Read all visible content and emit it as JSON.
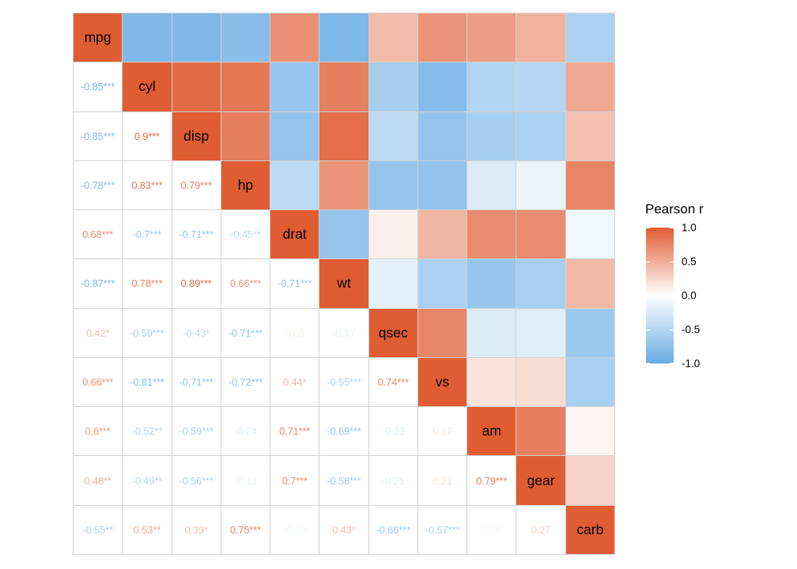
{
  "chart_data": {
    "type": "heatmap",
    "title": "",
    "description": "Pairwise Pearson correlation matrix (mtcars variables): lower triangle shows coefficients with significance stars, diagonal shows variable names, upper triangle shows color tiles",
    "variables": [
      "mpg",
      "cyl",
      "disp",
      "hp",
      "drat",
      "wt",
      "qsec",
      "vs",
      "am",
      "gear",
      "carb"
    ],
    "rows": [
      {
        "name": "mpg",
        "cells": []
      },
      {
        "name": "cyl",
        "cells": [
          {
            "label": "-0.85***",
            "r": -0.85
          }
        ]
      },
      {
        "name": "disp",
        "cells": [
          {
            "label": "-0.85***",
            "r": -0.85
          },
          {
            "label": "0.9***",
            "r": 0.9
          }
        ]
      },
      {
        "name": "hp",
        "cells": [
          {
            "label": "-0.78***",
            "r": -0.78
          },
          {
            "label": "0.83***",
            "r": 0.83
          },
          {
            "label": "0.79***",
            "r": 0.79
          }
        ]
      },
      {
        "name": "drat",
        "cells": [
          {
            "label": "0.68***",
            "r": 0.68
          },
          {
            "label": "-0.7***",
            "r": -0.7
          },
          {
            "label": "-0.71***",
            "r": -0.71
          },
          {
            "label": "-0.45**",
            "r": -0.45
          }
        ]
      },
      {
        "name": "wt",
        "cells": [
          {
            "label": "-0.87***",
            "r": -0.87
          },
          {
            "label": "0.78***",
            "r": 0.78
          },
          {
            "label": "0.89***",
            "r": 0.89
          },
          {
            "label": "0.66***",
            "r": 0.66
          },
          {
            "label": "-0.71***",
            "r": -0.71
          }
        ]
      },
      {
        "name": "qsec",
        "cells": [
          {
            "label": "0.42*",
            "r": 0.42
          },
          {
            "label": "-0.59***",
            "r": -0.59
          },
          {
            "label": "-0.43*",
            "r": -0.43
          },
          {
            "label": "-0.71***",
            "r": -0.71
          },
          {
            "label": "0.09",
            "r": 0.09
          },
          {
            "label": "-0.17",
            "r": -0.17
          }
        ]
      },
      {
        "name": "vs",
        "cells": [
          {
            "label": "0.66***",
            "r": 0.66
          },
          {
            "label": "-0.81***",
            "r": -0.81
          },
          {
            "label": "-0.71***",
            "r": -0.71
          },
          {
            "label": "-0.72***",
            "r": -0.72
          },
          {
            "label": "0.44*",
            "r": 0.44
          },
          {
            "label": "-0.55***",
            "r": -0.55
          },
          {
            "label": "0.74***",
            "r": 0.74
          }
        ]
      },
      {
        "name": "am",
        "cells": [
          {
            "label": "0.6***",
            "r": 0.6
          },
          {
            "label": "-0.52**",
            "r": -0.52
          },
          {
            "label": "-0.59***",
            "r": -0.59
          },
          {
            "label": "-0.24",
            "r": -0.24
          },
          {
            "label": "0.71***",
            "r": 0.71
          },
          {
            "label": "-0.69***",
            "r": -0.69
          },
          {
            "label": "-0.23",
            "r": -0.23
          },
          {
            "label": "0.17",
            "r": 0.17
          }
        ]
      },
      {
        "name": "gear",
        "cells": [
          {
            "label": "0.48**",
            "r": 0.48
          },
          {
            "label": "-0.49**",
            "r": -0.49
          },
          {
            "label": "-0.56***",
            "r": -0.56
          },
          {
            "label": "-0.13",
            "r": -0.13
          },
          {
            "label": "0.7***",
            "r": 0.7
          },
          {
            "label": "-0.58***",
            "r": -0.58
          },
          {
            "label": "-0.21",
            "r": -0.21
          },
          {
            "label": "0.21",
            "r": 0.21
          },
          {
            "label": "0.79***",
            "r": 0.79
          }
        ]
      },
      {
        "name": "carb",
        "cells": [
          {
            "label": "-0.55**",
            "r": -0.55
          },
          {
            "label": "0.53**",
            "r": 0.53
          },
          {
            "label": "0.39*",
            "r": 0.39
          },
          {
            "label": "0.75***",
            "r": 0.75
          },
          {
            "label": "-0.09",
            "r": -0.09
          },
          {
            "label": "0.43*",
            "r": 0.43
          },
          {
            "label": "-0.66***",
            "r": -0.66
          },
          {
            "label": "-0.57***",
            "r": -0.57
          },
          {
            "label": "0.06",
            "r": 0.06
          },
          {
            "label": "0.27",
            "r": 0.27
          }
        ]
      }
    ],
    "colors": {
      "high": "#E05C33",
      "mid": "#FFFFFF",
      "low": "#68ACE4",
      "grid_line": "#D2D2D2",
      "label_text": "#000000"
    },
    "legend": {
      "title": "Pearson r",
      "position": "right",
      "range": [
        -1.0,
        1.0
      ],
      "ticks": [
        {
          "label": "1.0",
          "value": 1.0
        },
        {
          "label": "0.5",
          "value": 0.5
        },
        {
          "label": "0.0",
          "value": 0.0
        },
        {
          "label": "-0.5",
          "value": -0.5
        },
        {
          "label": "-1.0",
          "value": -1.0
        }
      ]
    }
  }
}
